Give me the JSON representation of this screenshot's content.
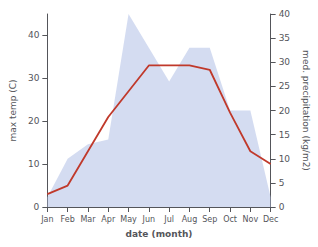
{
  "chart_data": {
    "type": "line",
    "categories": [
      "Jan",
      "Feb",
      "Mar",
      "Apr",
      "May",
      "Jun",
      "Jul",
      "Aug",
      "Sep",
      "Oct",
      "Nov",
      "Dec"
    ],
    "xlabel": "date (month)",
    "ylabel": "max temp (C)",
    "y2label": "med. precipitation (kg/m2)",
    "ylim": [
      0,
      45
    ],
    "yticks": [
      0,
      10,
      20,
      30,
      40
    ],
    "y2lim": [
      0,
      40
    ],
    "y2ticks": [
      0,
      5,
      10,
      15,
      20,
      25,
      30,
      35,
      40
    ],
    "grid": false,
    "series": [
      {
        "type": "area",
        "axis": "y2",
        "color": "#b8c4e8",
        "values": [
          2,
          10,
          13,
          14,
          40,
          33,
          26,
          33,
          33,
          20,
          20,
          2
        ]
      },
      {
        "type": "line",
        "color": "#c0392b",
        "values": [
          3,
          5,
          13,
          21,
          27,
          33,
          33,
          33,
          32,
          22,
          13,
          10
        ]
      }
    ]
  }
}
